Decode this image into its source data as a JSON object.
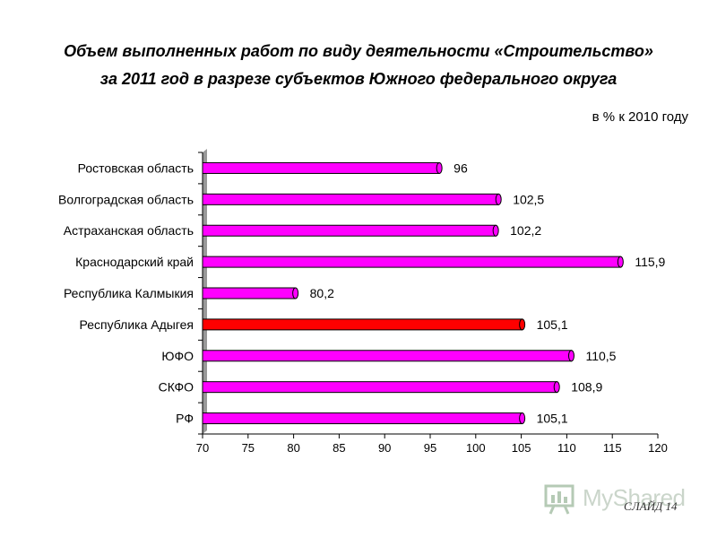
{
  "header": {
    "title_line1": "Объем выполненных работ по виду деятельности «Строительство»",
    "title_line2": "за 2011 год  в разрезе   субъектов Южного федерального округа",
    "unit_note": "в % к  2010 году"
  },
  "footer": {
    "slide_label": "СЛАЙД  14",
    "watermark": "MyShared"
  },
  "colors": {
    "bar_default": "#ff00ff",
    "bar_highlight": "#ff0000",
    "highlight_label": "#ff0000",
    "axis": "#000000",
    "axis_wall": "#999999"
  },
  "chart_data": {
    "type": "bar",
    "orientation": "horizontal",
    "title": "Объем выполненных работ по виду деятельности «Строительство» за 2011 год  в разрезе   субъектов Южного федерального округа",
    "xlabel": "",
    "ylabel": "",
    "xlim": [
      70,
      120
    ],
    "x_ticks": [
      70,
      75,
      80,
      85,
      90,
      95,
      100,
      105,
      110,
      115,
      120
    ],
    "grid": false,
    "legend": "none",
    "categories": [
      "Ростовская область",
      "Волгоградская область",
      "Астраханская область",
      "Краснодарский край",
      "Республика Калмыкия",
      "Республика Адыгея",
      "ЮФО",
      "СКФО",
      "РФ"
    ],
    "values": [
      96,
      102.5,
      102.2,
      115.9,
      80.2,
      105.1,
      110.5,
      108.9,
      105.1
    ],
    "value_labels": [
      "96",
      "102,5",
      "102,2",
      "115,9",
      "80,2",
      "105,1",
      "110,5",
      "108,9",
      "105,1"
    ],
    "highlight_index": 5
  }
}
